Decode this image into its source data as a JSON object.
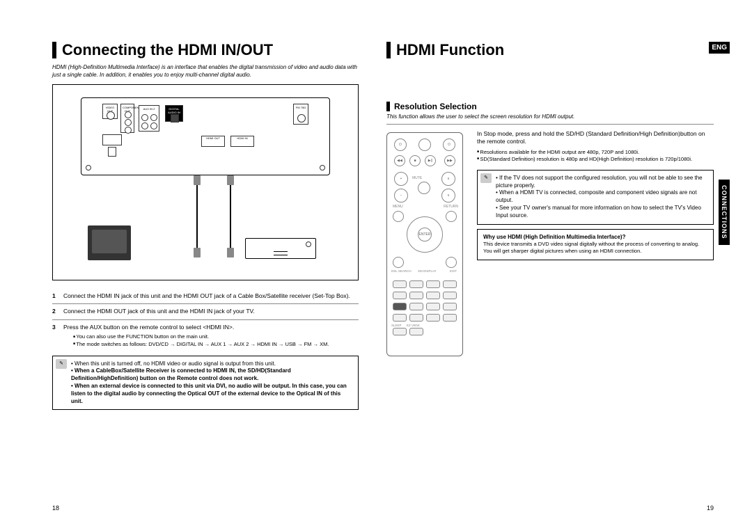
{
  "left": {
    "heading": "Connecting the HDMI IN/OUT",
    "intro": "HDMI (High-Definition Multimedia Interface) is an interface that enables the digital transmission of video and audio data with just a single cable. In addition, it enables you to enjoy multi-channel digital audio.",
    "steps": [
      {
        "num": "1",
        "text": "Connect the HDMI IN jack of this unit and the HDMI OUT jack of a Cable Box/Satellite receiver (Set-Top Box)."
      },
      {
        "num": "2",
        "text": "Connect the HDMI OUT jack of this unit and the HDMI IN jack of your TV."
      },
      {
        "num": "3",
        "text": "Press the AUX button on the remote control to select <HDMI IN>."
      }
    ],
    "sub_bullets": [
      "You can also use the FUNCTION button on the main unit.",
      "The mode switches as follows: DVD/CD → DIGITAL IN → AUX 1 → AUX 2 → HDMI IN → USB → FM → XM."
    ],
    "note_lines": [
      {
        "text": "When this unit is turned off, no HDMI video or audio signal is output from this unit.",
        "bold": false,
        "bullet": true
      },
      {
        "text": "When a CableBox/Satellite Receiver is connected to HDMI IN, the SD/HD(Standard Definition/HighDefinition) button on the Remote control does not work.",
        "bold": true,
        "bullet": true
      },
      {
        "text": "When an external device is connected to this unit via DVI, no audio will be output. In this case, you can listen to the digital audio by connecting the Optical OUT of the external device to the Optical IN of this unit.",
        "bold": true,
        "bullet": true
      }
    ],
    "diagram_labels": {
      "video_out": "VIDEO OUT",
      "component": "COMPONENT OUT",
      "aux": "AUX IN 2",
      "digital": "DIGITAL AUDIO IN",
      "optical": "OPTICAL",
      "hdmi_out": "HDMI OUT",
      "hdmi_in": "HDMI IN",
      "xm": "XM",
      "wire_ant": "WIRELESS",
      "fm": "FM 75Ω"
    },
    "page_num": "18"
  },
  "right": {
    "heading": "HDMI Function",
    "eng_badge": "ENG",
    "side_tab": "CONNECTIONS",
    "sub_heading": "Resolution Selection",
    "intro": "This function allows the user to select the screen resolution for HDMI output.",
    "lead_text": "In Stop mode, press and hold the SD/HD (Standard Definition/High Definition)button on the remote control.",
    "bullets": [
      "Resolutions available for the HDMI output are 480p, 720P and 1080i.",
      "SD(Standard Definition) resolution is 480p and HD(High Definition) resolution is 720p/1080i."
    ],
    "note1_lines": [
      "If the TV does not support the configured resolution, you will not be able to see the picture properly.",
      "When a HDMI TV is connected, composite and component video signals are not output.",
      "See your TV owner's manual for more information on how to select the TV's Video Input source."
    ],
    "note2_title": "Why use HDMI (High Definition Multimedia Interface)?",
    "note2_lines": [
      "This device transmits a DVD video signal digitally without the process of converting to analog. You will get sharper digital pictures when using an HDMI connection."
    ],
    "page_num": "19"
  }
}
